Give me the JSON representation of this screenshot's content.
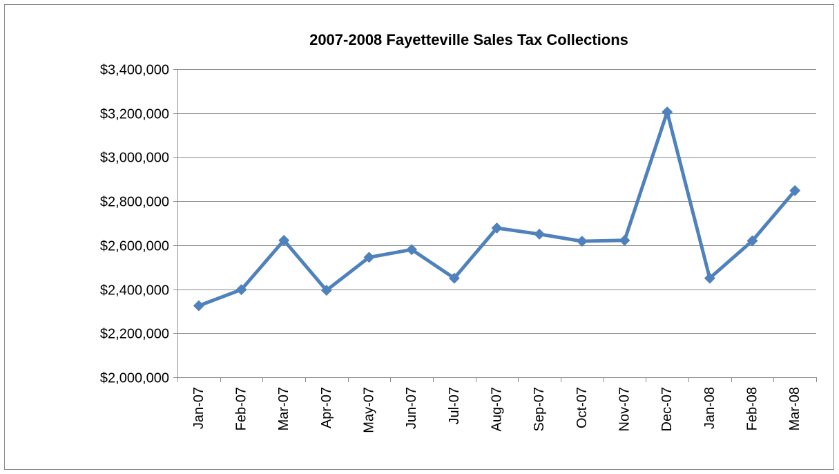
{
  "chart_data": {
    "type": "line",
    "title": "2007-2008 Fayetteville Sales Tax Collections",
    "xlabel": "",
    "ylabel": "",
    "categories": [
      "Jan-07",
      "Feb-07",
      "Mar-07",
      "Apr-07",
      "May-07",
      "Jun-07",
      "Jul-07",
      "Aug-07",
      "Sep-07",
      "Oct-07",
      "Nov-07",
      "Dec-07",
      "Jan-08",
      "Feb-08",
      "Mar-08"
    ],
    "series": [
      {
        "values": [
          2325000,
          2398000,
          2622000,
          2395000,
          2545000,
          2580000,
          2450000,
          2678000,
          2650000,
          2618000,
          2622000,
          3205000,
          2450000,
          2620000,
          2848000
        ],
        "color": "#4f81bd",
        "marker": "diamond"
      }
    ],
    "ylim": [
      2000000,
      3400000
    ],
    "y_ticks": [
      2000000,
      2200000,
      2400000,
      2600000,
      2800000,
      3000000,
      3200000,
      3400000
    ],
    "y_tick_labels": [
      "$2,000,000",
      "$2,200,000",
      "$2,400,000",
      "$2,600,000",
      "$2,800,000",
      "$3,000,000",
      "$3,200,000",
      "$3,400,000"
    ],
    "grid": true,
    "legend": "none",
    "tick_label_rotation": -90
  }
}
